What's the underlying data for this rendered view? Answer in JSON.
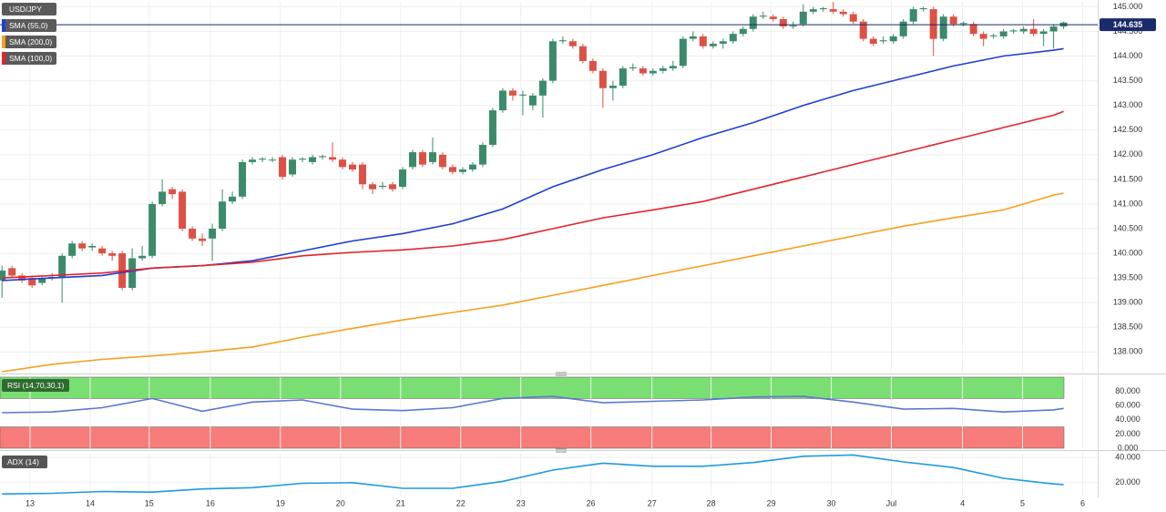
{
  "chart_data": [
    {
      "type": "candlestick",
      "title": "USD/JPY",
      "up_color": "#3b8a6c",
      "down_color": "#dd5145",
      "open": [
        139.45,
        139.7,
        139.55,
        139.5,
        139.4,
        139.5,
        139.5,
        139.95,
        140.2,
        140.12,
        140.1,
        140.0,
        140.0,
        139.3,
        139.9,
        139.95,
        141.0,
        141.3,
        141.25,
        140.5,
        140.3,
        140.3,
        140.5,
        141.05,
        141.15,
        141.85,
        141.9,
        141.9,
        141.95,
        141.6,
        141.9,
        141.85,
        141.95,
        141.95,
        141.9,
        141.8,
        141.8,
        141.4,
        141.35,
        141.4,
        141.35,
        141.75,
        142.05,
        141.85,
        142.0,
        141.75,
        141.65,
        141.7,
        141.8,
        142.2,
        142.9,
        143.3,
        143.2,
        143.0,
        143.2,
        143.5,
        144.3,
        144.3,
        144.2,
        143.9,
        143.7,
        143.35,
        143.4,
        143.75,
        143.75,
        143.65,
        143.7,
        143.75,
        143.8,
        144.35,
        144.4,
        144.2,
        144.25,
        144.3,
        144.45,
        144.55,
        144.8,
        144.8,
        144.75,
        144.6,
        144.65,
        144.9,
        144.95,
        144.95,
        144.9,
        144.85,
        144.7,
        144.35,
        144.3,
        144.3,
        144.4,
        144.7,
        144.95,
        144.95,
        144.35,
        144.8,
        144.65,
        144.65,
        144.45,
        144.4,
        144.4,
        144.5,
        144.5,
        144.55,
        144.45,
        144.5,
        144.6
      ],
      "high": [
        139.75,
        139.75,
        139.6,
        139.55,
        139.55,
        139.6,
        140.0,
        140.25,
        140.25,
        140.2,
        140.15,
        140.05,
        140.05,
        140.1,
        140.15,
        141.05,
        141.5,
        141.35,
        141.3,
        140.55,
        140.4,
        140.6,
        141.3,
        141.25,
        141.9,
        141.95,
        141.95,
        141.95,
        142.0,
        141.95,
        141.95,
        142.0,
        142.0,
        142.25,
        141.95,
        141.85,
        141.85,
        141.45,
        141.45,
        141.45,
        141.75,
        142.1,
        142.1,
        142.35,
        142.05,
        141.8,
        141.75,
        141.85,
        142.25,
        142.95,
        143.35,
        143.35,
        143.3,
        143.25,
        143.55,
        144.35,
        144.4,
        144.35,
        144.25,
        143.95,
        143.75,
        143.5,
        143.8,
        143.85,
        143.8,
        143.75,
        143.8,
        143.9,
        144.4,
        144.5,
        144.45,
        144.3,
        144.35,
        144.5,
        144.6,
        144.85,
        144.9,
        144.85,
        144.8,
        144.7,
        145.05,
        145.0,
        145.0,
        145.1,
        144.95,
        144.9,
        144.75,
        144.4,
        144.4,
        144.45,
        144.75,
        145.0,
        145.0,
        145.0,
        144.85,
        144.85,
        144.7,
        144.7,
        144.5,
        144.45,
        144.55,
        144.55,
        144.6,
        144.75,
        144.55,
        144.65,
        144.7
      ],
      "low": [
        139.1,
        139.5,
        139.4,
        139.3,
        139.35,
        139.45,
        139.0,
        139.9,
        140.05,
        140.05,
        139.95,
        139.85,
        139.25,
        139.25,
        139.85,
        139.9,
        140.95,
        141.1,
        140.45,
        140.25,
        140.15,
        139.85,
        140.45,
        141.0,
        141.1,
        141.8,
        141.85,
        141.85,
        141.5,
        141.55,
        141.85,
        141.8,
        141.9,
        141.85,
        141.7,
        141.65,
        141.3,
        141.2,
        141.3,
        141.25,
        141.3,
        141.7,
        141.75,
        141.8,
        141.7,
        141.6,
        141.6,
        141.65,
        141.75,
        142.15,
        142.85,
        143.1,
        142.8,
        142.9,
        142.75,
        143.45,
        144.25,
        144.15,
        143.85,
        143.65,
        142.95,
        143.1,
        143.35,
        143.7,
        143.6,
        143.6,
        143.65,
        143.7,
        143.75,
        144.3,
        144.15,
        144.15,
        144.15,
        144.25,
        144.4,
        144.5,
        144.75,
        144.7,
        144.55,
        144.55,
        144.6,
        144.85,
        144.9,
        144.85,
        144.8,
        144.65,
        144.3,
        144.2,
        144.25,
        144.25,
        144.35,
        144.65,
        144.9,
        144.0,
        144.3,
        144.6,
        144.6,
        144.4,
        144.2,
        144.35,
        144.35,
        144.45,
        144.45,
        144.4,
        144.2,
        144.15,
        144.55
      ],
      "close": [
        139.65,
        139.55,
        139.45,
        139.35,
        139.5,
        139.52,
        139.95,
        140.2,
        140.1,
        140.15,
        140.0,
        139.95,
        139.3,
        139.9,
        139.95,
        141.0,
        141.25,
        141.2,
        140.5,
        140.3,
        140.25,
        140.5,
        141.05,
        141.15,
        141.85,
        141.9,
        141.92,
        141.9,
        141.55,
        141.9,
        141.92,
        141.95,
        141.97,
        141.9,
        141.75,
        141.7,
        141.4,
        141.3,
        141.37,
        141.3,
        141.7,
        142.05,
        141.8,
        142.05,
        141.75,
        141.65,
        141.7,
        141.8,
        142.2,
        142.9,
        143.3,
        143.2,
        143.22,
        143.2,
        143.5,
        144.3,
        144.32,
        144.2,
        143.9,
        143.7,
        143.35,
        143.4,
        143.75,
        143.77,
        143.65,
        143.7,
        143.75,
        143.8,
        144.35,
        144.4,
        144.2,
        144.25,
        144.3,
        144.45,
        144.55,
        144.8,
        144.82,
        144.75,
        144.6,
        144.62,
        144.9,
        144.95,
        144.97,
        144.9,
        144.85,
        144.7,
        144.35,
        144.25,
        144.32,
        144.4,
        144.7,
        144.95,
        144.97,
        144.35,
        144.8,
        144.65,
        144.67,
        144.45,
        144.35,
        144.42,
        144.5,
        144.52,
        144.55,
        144.45,
        144.5,
        144.6,
        144.68
      ],
      "series": [
        {
          "name": "SMA (55,0)",
          "color": "#1e3fd4",
          "x": [
            0,
            5,
            10,
            15,
            20,
            25,
            30,
            35,
            40,
            45,
            50,
            55,
            60,
            65,
            70,
            75,
            80,
            85,
            90,
            95,
            100,
            105,
            106
          ],
          "values": [
            139.45,
            139.5,
            139.55,
            139.7,
            139.75,
            139.85,
            140.05,
            140.25,
            140.4,
            140.6,
            140.9,
            141.35,
            141.7,
            142.0,
            142.35,
            142.65,
            143.0,
            143.3,
            143.55,
            143.8,
            144.0,
            144.12,
            144.15
          ]
        },
        {
          "name": "SMA (200,0)",
          "color": "#f5a01e",
          "x": [
            0,
            5,
            10,
            15,
            20,
            25,
            30,
            35,
            40,
            45,
            50,
            55,
            60,
            65,
            70,
            75,
            80,
            85,
            90,
            95,
            100,
            105,
            106
          ],
          "values": [
            137.6,
            137.75,
            137.85,
            137.92,
            138.0,
            138.1,
            138.3,
            138.48,
            138.65,
            138.8,
            138.95,
            139.15,
            139.35,
            139.55,
            139.75,
            139.95,
            140.15,
            140.35,
            140.55,
            140.72,
            140.88,
            141.18,
            141.22
          ]
        },
        {
          "name": "SMA (100,0)",
          "color": "#e3242b",
          "x": [
            0,
            5,
            10,
            15,
            20,
            25,
            30,
            35,
            40,
            45,
            50,
            55,
            60,
            65,
            70,
            75,
            80,
            85,
            90,
            95,
            100,
            105,
            106
          ],
          "values": [
            139.5,
            139.55,
            139.6,
            139.7,
            139.75,
            139.82,
            139.95,
            140.02,
            140.07,
            140.15,
            140.28,
            140.5,
            140.72,
            140.88,
            141.05,
            141.3,
            141.55,
            141.8,
            142.05,
            142.3,
            142.55,
            142.8,
            142.88
          ]
        }
      ],
      "last_value": 144.635,
      "ylim": [
        137.6,
        145.1
      ],
      "yticks": [
        {
          "value": 138,
          "label": "138.000"
        },
        {
          "value": 138.5,
          "label": "138.500"
        },
        {
          "value": 139,
          "label": "139.000"
        },
        {
          "value": 139.5,
          "label": "139.500"
        },
        {
          "value": 140,
          "label": "140.000"
        },
        {
          "value": 140.5,
          "label": "140.500"
        },
        {
          "value": 141,
          "label": "141.000"
        },
        {
          "value": 141.5,
          "label": "141.500"
        },
        {
          "value": 142,
          "label": "142.000"
        },
        {
          "value": 142.5,
          "label": "142.500"
        },
        {
          "value": 143,
          "label": "143.000"
        },
        {
          "value": 143.5,
          "label": "143.500"
        },
        {
          "value": 144,
          "label": "144.000"
        },
        {
          "value": 144.5,
          "label": "144.500"
        },
        {
          "value": 145,
          "label": "145.000"
        }
      ],
      "grid": true
    },
    {
      "type": "line",
      "series": [
        {
          "name": "RSI (14,70,30,1)",
          "color": "#5a78d0",
          "label_color": "#2f6b2f",
          "x": [
            0,
            5,
            10,
            15,
            20,
            25,
            30,
            35,
            40,
            45,
            50,
            55,
            60,
            65,
            70,
            75,
            80,
            85,
            90,
            95,
            100,
            105,
            106
          ],
          "values": [
            50,
            51,
            57,
            70,
            52,
            65,
            68,
            55,
            53,
            57,
            70,
            73,
            64,
            66,
            68,
            72,
            73,
            65,
            55,
            56,
            51,
            54,
            56
          ]
        }
      ],
      "bands": [
        {
          "from": 70,
          "to": 100,
          "color": "#7adf73"
        },
        {
          "from": 0,
          "to": 30,
          "color": "#f57c78"
        }
      ],
      "ylim": [
        0,
        100
      ],
      "yticks": [
        {
          "value": 0,
          "label": "0.000"
        },
        {
          "value": 20,
          "label": "20.000"
        },
        {
          "value": 40,
          "label": "40.000"
        },
        {
          "value": 60,
          "label": "60.000"
        },
        {
          "value": 80,
          "label": "80.000"
        }
      ],
      "grid": true
    },
    {
      "type": "line",
      "series": [
        {
          "name": "ADX (14)",
          "color": "#1c9ae0",
          "label_color": "#555555",
          "x": [
            0,
            5,
            10,
            15,
            20,
            25,
            30,
            35,
            40,
            45,
            50,
            55,
            60,
            65,
            70,
            75,
            80,
            85,
            90,
            95,
            100,
            105,
            106
          ],
          "values": [
            11,
            11.5,
            13,
            12.5,
            15,
            16,
            19.5,
            20,
            15.5,
            15.5,
            21,
            30,
            35.5,
            33,
            33,
            36,
            41,
            42,
            36.5,
            32,
            23.5,
            19,
            18.5
          ]
        }
      ],
      "ylim": [
        9,
        43
      ],
      "yticks": [
        {
          "value": 20,
          "label": "20.000"
        },
        {
          "value": 40,
          "label": "40.000"
        }
      ],
      "xlim": [
        -0.2,
        109.4
      ],
      "xticks": [
        {
          "value": 2.8,
          "label": "13"
        },
        {
          "value": 8.8,
          "label": "14"
        },
        {
          "value": 14.7,
          "label": "15"
        },
        {
          "value": 20.8,
          "label": "16"
        },
        {
          "value": 27.8,
          "label": "19"
        },
        {
          "value": 33.8,
          "label": "20"
        },
        {
          "value": 39.8,
          "label": "21"
        },
        {
          "value": 45.8,
          "label": "22"
        },
        {
          "value": 51.8,
          "label": "23"
        },
        {
          "value": 58.8,
          "label": "26"
        },
        {
          "value": 64.9,
          "label": "27"
        },
        {
          "value": 70.8,
          "label": "28"
        },
        {
          "value": 76.8,
          "label": "29"
        },
        {
          "value": 82.8,
          "label": "30"
        },
        {
          "value": 88.8,
          "label": "Jul"
        },
        {
          "value": 95.9,
          "label": "4"
        },
        {
          "value": 101.9,
          "label": "5"
        },
        {
          "value": 107.9,
          "label": "6"
        }
      ],
      "grid": true
    }
  ]
}
